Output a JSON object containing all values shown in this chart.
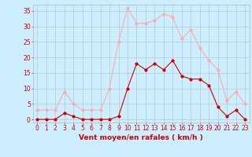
{
  "hours": [
    0,
    1,
    2,
    3,
    4,
    5,
    6,
    7,
    8,
    9,
    10,
    11,
    12,
    13,
    14,
    15,
    16,
    17,
    18,
    19,
    20,
    21,
    22,
    23
  ],
  "wind_avg": [
    0,
    0,
    0,
    2,
    1,
    0,
    0,
    0,
    0,
    1,
    10,
    18,
    16,
    18,
    16,
    19,
    14,
    13,
    13,
    11,
    4,
    1,
    3,
    0
  ],
  "wind_gust": [
    3,
    3,
    3,
    9,
    5,
    3,
    3,
    3,
    10,
    25,
    36,
    31,
    31,
    32,
    34,
    33,
    26,
    29,
    23,
    19,
    16,
    6,
    9,
    5
  ],
  "color_avg": "#cc0000",
  "color_gust": "#ffaaaa",
  "bg_color": "#cceeff",
  "grid_color": "#aabbbb",
  "xlabel": "Vent moyen/en rafales ( km/h )",
  "xlabel_color": "#cc0000",
  "ylabel_color": "#cc0000",
  "yticks": [
    0,
    5,
    10,
    15,
    20,
    25,
    30,
    35
  ],
  "ylim": [
    -1,
    37
  ],
  "xlim": [
    -0.5,
    23.5
  ],
  "label_fontsize": 6.5,
  "tick_fontsize": 5.5
}
